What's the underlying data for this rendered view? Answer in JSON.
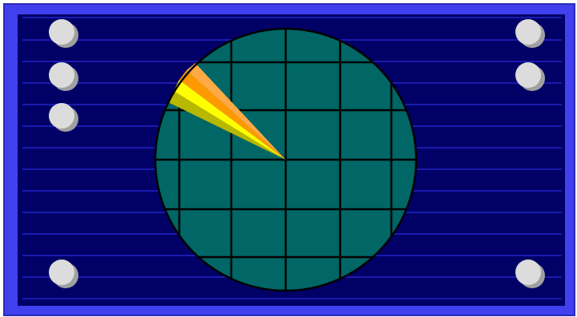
{
  "colors": {
    "outer_frame": "#4040ee",
    "frame_edge": "#2a2ab8",
    "panel": "#000066",
    "scan_lines": "#1a1ab0",
    "screen": "#006666",
    "grid": "#000000",
    "knob_face": "#dcdcdc",
    "knob_shadow": "#a0a0a0",
    "sweep": [
      "#b8b800",
      "#ffff00",
      "#ff9900",
      "#ffaa44"
    ]
  },
  "knobs": {
    "left": 4,
    "right": 3
  },
  "icons": {
    "knob": "round-knob",
    "screen": "radar-scope",
    "sweep": "radar-sweep-beam"
  }
}
